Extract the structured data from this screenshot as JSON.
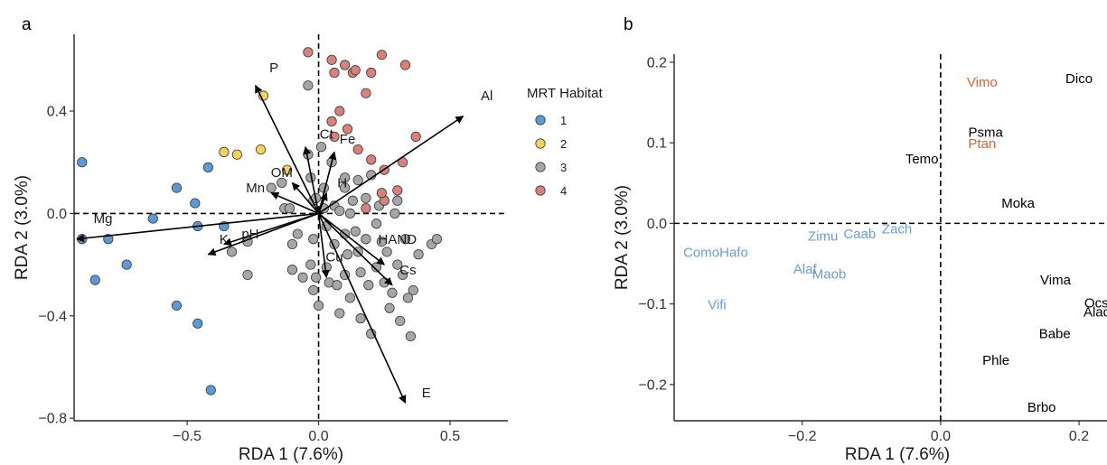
{
  "chart_data": [
    {
      "panel": "a",
      "type": "scatter",
      "xlabel": "RDA 1 (7.6%)",
      "ylabel": "RDA 2 (3.0%)",
      "xlim": [
        -0.93,
        0.72
      ],
      "ylim": [
        -0.81,
        0.7
      ],
      "xticks": [
        -0.5,
        0.0,
        0.5
      ],
      "xtick_labels": [
        "−0.5",
        "0.0",
        "0.5"
      ],
      "yticks": [
        -0.8,
        -0.4,
        0.0,
        0.4
      ],
      "ytick_labels": [
        "−0.8",
        "−0.4",
        "0.0",
        "0.4"
      ],
      "reference_lines": {
        "x": 0,
        "y": 0,
        "style": "dashed"
      },
      "grid": false,
      "legend": {
        "title": "MRT Habitat",
        "placement": "right",
        "entries": [
          {
            "label": "1",
            "color": "#5B9BD5"
          },
          {
            "label": "2",
            "color": "#F2D45C"
          },
          {
            "label": "3",
            "color": "#A6A6A6"
          },
          {
            "label": "4",
            "color": "#D9807A"
          }
        ]
      },
      "point_groups": [
        {
          "habitat": "1",
          "color": "#5B9BD5",
          "points": [
            [
              -0.9,
              0.2
            ],
            [
              -0.9,
              -0.1
            ],
            [
              -0.8,
              -0.1
            ],
            [
              -0.85,
              -0.26
            ],
            [
              -0.73,
              -0.2
            ],
            [
              -0.63,
              -0.02
            ],
            [
              -0.54,
              0.1
            ],
            [
              -0.54,
              -0.36
            ],
            [
              -0.47,
              0.04
            ],
            [
              -0.46,
              -0.05
            ],
            [
              -0.46,
              -0.43
            ],
            [
              -0.42,
              0.18
            ],
            [
              -0.36,
              -0.05
            ],
            [
              -0.41,
              -0.69
            ]
          ]
        },
        {
          "habitat": "2",
          "color": "#F2D45C",
          "points": [
            [
              -0.36,
              0.24
            ],
            [
              -0.31,
              0.23
            ],
            [
              -0.22,
              0.25
            ],
            [
              -0.21,
              0.46
            ],
            [
              -0.12,
              0.17
            ]
          ]
        },
        {
          "habitat": "3",
          "color": "#A6A6A6",
          "points": [
            [
              -0.33,
              -0.15
            ],
            [
              -0.27,
              -0.11
            ],
            [
              -0.27,
              -0.24
            ],
            [
              -0.18,
              0.1
            ],
            [
              -0.14,
              0.12
            ],
            [
              -0.13,
              0.02
            ],
            [
              -0.11,
              0.02
            ],
            [
              -0.1,
              -0.12
            ],
            [
              -0.1,
              -0.22
            ],
            [
              -0.08,
              -0.08
            ],
            [
              -0.06,
              -0.25
            ],
            [
              -0.04,
              0.5
            ],
            [
              -0.04,
              0.23
            ],
            [
              -0.03,
              0.14
            ],
            [
              -0.03,
              -0.2
            ],
            [
              -0.02,
              0.05
            ],
            [
              -0.02,
              -0.1
            ],
            [
              -0.02,
              -0.3
            ],
            [
              -0.01,
              0.06
            ],
            [
              -0.01,
              -0.25
            ],
            [
              0.0,
              -0.36
            ],
            [
              0.01,
              0.26
            ],
            [
              0.02,
              0.1
            ],
            [
              0.02,
              0.02
            ],
            [
              0.03,
              -0.05
            ],
            [
              0.03,
              -0.21
            ],
            [
              0.04,
              -0.27
            ],
            [
              0.05,
              0.2
            ],
            [
              0.06,
              0.03
            ],
            [
              0.06,
              -0.12
            ],
            [
              0.07,
              -0.28
            ],
            [
              0.08,
              0.01
            ],
            [
              0.08,
              -0.39
            ],
            [
              0.1,
              0.14
            ],
            [
              0.1,
              0.1
            ],
            [
              0.1,
              -0.08
            ],
            [
              0.1,
              -0.24
            ],
            [
              0.11,
              -0.16
            ],
            [
              0.12,
              0.0
            ],
            [
              0.12,
              -0.33
            ],
            [
              0.14,
              -0.07
            ],
            [
              0.15,
              0.13
            ],
            [
              0.15,
              -0.15
            ],
            [
              0.16,
              -0.23
            ],
            [
              0.16,
              -0.41
            ],
            [
              0.18,
              0.06
            ],
            [
              0.18,
              -0.1
            ],
            [
              0.19,
              -0.28
            ],
            [
              0.2,
              -0.47
            ],
            [
              0.22,
              -0.04
            ],
            [
              0.22,
              -0.21
            ],
            [
              0.23,
              0.03
            ],
            [
              0.24,
              -0.11
            ],
            [
              0.25,
              -0.27
            ],
            [
              0.26,
              -0.15
            ],
            [
              0.27,
              -0.37
            ],
            [
              0.28,
              -0.31
            ],
            [
              0.29,
              0.0
            ],
            [
              0.3,
              0.05
            ],
            [
              0.3,
              -0.2
            ],
            [
              0.31,
              -0.42
            ],
            [
              0.32,
              -0.24
            ],
            [
              0.34,
              -0.33
            ],
            [
              0.35,
              -0.48
            ],
            [
              0.36,
              -0.3
            ],
            [
              0.38,
              -0.16
            ],
            [
              0.43,
              -0.12
            ],
            [
              0.45,
              -0.1
            ],
            [
              0.33,
              -0.1
            ],
            [
              0.2,
              0.15
            ],
            [
              0.13,
              0.05
            ]
          ]
        },
        {
          "habitat": "4",
          "color": "#D9807A",
          "points": [
            [
              -0.04,
              0.63
            ],
            [
              0.05,
              0.6
            ],
            [
              0.06,
              0.55
            ],
            [
              0.1,
              0.58
            ],
            [
              0.13,
              0.55
            ],
            [
              0.14,
              0.56
            ],
            [
              0.2,
              0.55
            ],
            [
              0.24,
              0.62
            ],
            [
              0.33,
              0.58
            ],
            [
              0.18,
              0.47
            ],
            [
              0.08,
              0.4
            ],
            [
              0.05,
              0.36
            ],
            [
              0.06,
              0.3
            ],
            [
              0.11,
              0.33
            ],
            [
              0.15,
              0.25
            ],
            [
              0.2,
              0.21
            ],
            [
              0.25,
              0.17
            ],
            [
              0.32,
              0.2
            ],
            [
              0.37,
              0.3
            ],
            [
              0.25,
              0.05
            ],
            [
              0.3,
              0.09
            ],
            [
              0.24,
              0.08
            ],
            [
              0.18,
              0.02
            ]
          ]
        }
      ],
      "vectors": [
        {
          "label": "Al",
          "x": 0.55,
          "y": 0.38
        },
        {
          "label": "P",
          "x": -0.24,
          "y": 0.5
        },
        {
          "label": "Ct",
          "x": -0.05,
          "y": 0.26
        },
        {
          "label": "Fe",
          "x": 0.06,
          "y": 0.24
        },
        {
          "label": "OM",
          "x": -0.1,
          "y": 0.12
        },
        {
          "label": "Mn",
          "x": -0.18,
          "y": 0.08
        },
        {
          "label": "H",
          "x": 0.03,
          "y": 0.08
        },
        {
          "label": "Mg",
          "x": -0.92,
          "y": -0.1
        },
        {
          "label": "K",
          "x": -0.42,
          "y": -0.16
        },
        {
          "label": "pH",
          "x": -0.36,
          "y": -0.12
        },
        {
          "label": "HAND",
          "x": 0.25,
          "y": -0.2
        },
        {
          "label": "Cu",
          "x": 0.03,
          "y": -0.25
        },
        {
          "label": "Cs",
          "x": 0.28,
          "y": -0.28
        },
        {
          "label": "E",
          "x": 0.33,
          "y": -0.74
        }
      ],
      "vector_label_positions": [
        {
          "label": "Al",
          "x": 0.64,
          "y": 0.46
        },
        {
          "label": "P",
          "x": -0.17,
          "y": 0.57
        },
        {
          "label": "Ct",
          "x": 0.03,
          "y": 0.31
        },
        {
          "label": "Fe",
          "x": 0.11,
          "y": 0.29
        },
        {
          "label": "OM",
          "x": -0.14,
          "y": 0.16
        },
        {
          "label": "Mn",
          "x": -0.24,
          "y": 0.1
        },
        {
          "label": "H",
          "x": 0.09,
          "y": 0.12
        },
        {
          "label": "Mg",
          "x": -0.82,
          "y": -0.02
        },
        {
          "label": "K",
          "x": -0.36,
          "y": -0.1
        },
        {
          "label": "pH",
          "x": -0.26,
          "y": -0.08
        },
        {
          "label": "HAND",
          "x": 0.3,
          "y": -0.1
        },
        {
          "label": "Cu",
          "x": 0.06,
          "y": -0.17
        },
        {
          "label": "Cs",
          "x": 0.34,
          "y": -0.22
        },
        {
          "label": "E",
          "x": 0.41,
          "y": -0.7
        }
      ]
    },
    {
      "panel": "b",
      "type": "scatter",
      "xlabel": "RDA 1 (7.6%)",
      "ylabel": "RDA 2 (3.0%)",
      "xlim": [
        -0.385,
        0.26
      ],
      "ylim": [
        -0.245,
        0.21
      ],
      "xticks": [
        -0.2,
        0.0,
        0.2
      ],
      "xtick_labels": [
        "−0.2",
        "0.0",
        "0.2"
      ],
      "yticks": [
        -0.2,
        -0.1,
        0.0,
        0.1,
        0.2
      ],
      "ytick_labels": [
        "−0.2",
        "−0.1",
        "0.0",
        "0.1",
        "0.2"
      ],
      "reference_lines": {
        "x": 0,
        "y": 0,
        "style": "dashed"
      },
      "grid": false,
      "species": [
        {
          "label": "Dico",
          "x": 0.2,
          "y": 0.18,
          "color": "#000000"
        },
        {
          "label": "Vimo",
          "x": 0.06,
          "y": 0.175,
          "color": "#E8612C"
        },
        {
          "label": "Psma",
          "x": 0.065,
          "y": 0.113,
          "color": "#000000"
        },
        {
          "label": "Ptan",
          "x": 0.06,
          "y": 0.099,
          "color": "#E8612C"
        },
        {
          "label": "Temo",
          "x": -0.027,
          "y": 0.08,
          "color": "#000000"
        },
        {
          "label": "Moka",
          "x": 0.112,
          "y": 0.025,
          "color": "#000000"
        },
        {
          "label": "ComoHafo",
          "x": -0.325,
          "y": -0.036,
          "color": "#6A9BE0"
        },
        {
          "label": "Zimu",
          "x": -0.17,
          "y": -0.016,
          "color": "#6A9BE0"
        },
        {
          "label": "Caab",
          "x": -0.117,
          "y": -0.013,
          "color": "#6A9BE0"
        },
        {
          "label": "Zach",
          "x": -0.063,
          "y": -0.007,
          "color": "#6A9BE0"
        },
        {
          "label": "Alaf",
          "x": -0.196,
          "y": -0.057,
          "color": "#6A9BE0"
        },
        {
          "label": "Maob",
          "x": -0.161,
          "y": -0.063,
          "color": "#6A9BE0"
        },
        {
          "label": "Vifi",
          "x": -0.323,
          "y": -0.101,
          "color": "#6A9BE0"
        },
        {
          "label": "Vima",
          "x": 0.166,
          "y": -0.07,
          "color": "#000000"
        },
        {
          "label": "Ocsc",
          "x": 0.23,
          "y": -0.099,
          "color": "#000000"
        },
        {
          "label": "Alad",
          "x": 0.226,
          "y": -0.11,
          "color": "#000000"
        },
        {
          "label": "Babe",
          "x": 0.165,
          "y": -0.137,
          "color": "#000000"
        },
        {
          "label": "Phle",
          "x": 0.08,
          "y": -0.17,
          "color": "#000000"
        },
        {
          "label": "Brbo",
          "x": 0.146,
          "y": -0.228,
          "color": "#000000"
        }
      ]
    }
  ]
}
